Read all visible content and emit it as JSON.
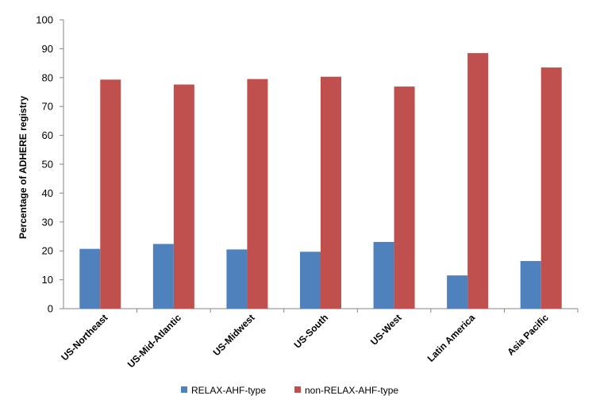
{
  "chart_data": {
    "type": "bar",
    "title": "",
    "xlabel": "",
    "ylabel": "Percentage  of ADHERE registry",
    "ylim": [
      0,
      100
    ],
    "yticks": [
      0,
      10,
      20,
      30,
      40,
      50,
      60,
      70,
      80,
      90,
      100
    ],
    "grid": false,
    "legend_position": "bottom",
    "categories": [
      "US-Northeast",
      "US-Mid-Atlantic",
      "US-Midwest",
      "US-South",
      "US-West",
      "Latin America",
      "Asia Pacific"
    ],
    "series": [
      {
        "name": "RELAX-AHF-type",
        "color": "#4f81bd",
        "values": [
          20.7,
          22.4,
          20.5,
          19.7,
          23.1,
          11.5,
          16.5
        ]
      },
      {
        "name": "non-RELAX-AHF-type",
        "color": "#c0504d",
        "values": [
          79.3,
          77.6,
          79.5,
          80.3,
          76.9,
          88.5,
          83.5
        ]
      }
    ]
  }
}
